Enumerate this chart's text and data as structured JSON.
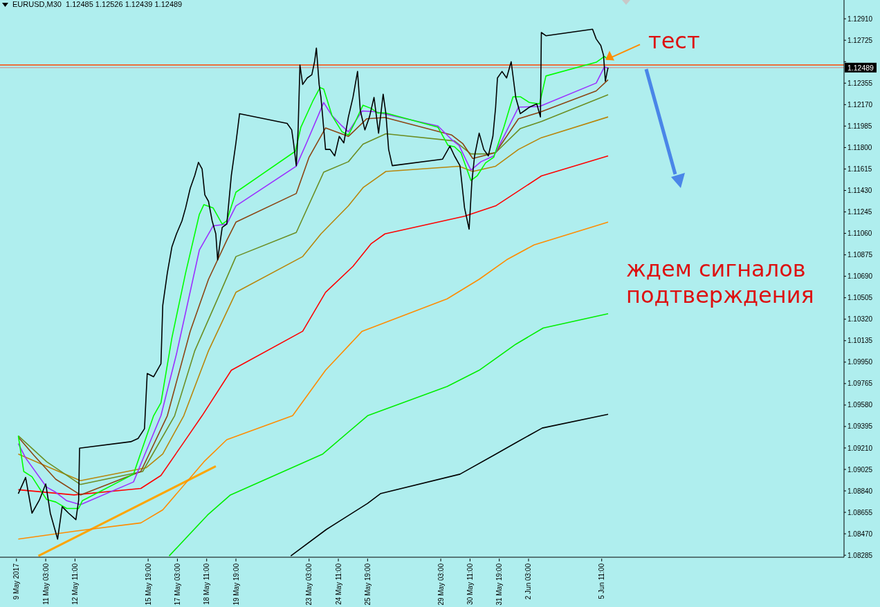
{
  "chart_data": {
    "type": "line",
    "title": "EURUSD,M30  1.12485 1.12526 1.12439 1.12489",
    "annotations": [
      {
        "text": "тест",
        "x": "2017-06-05T15:00",
        "y": 1.12557
      },
      "ждем сигналов подтверждения"
    ],
    "marker": "none",
    "line_style": "solid",
    "xlim": [
      "2017-05-09T01:00",
      "2017-06-16T12:00"
    ],
    "xticks": [
      {
        "value": "2017-05-09T19:00",
        "label": "9 May 2017"
      },
      {
        "value": "2017-05-11T03:00",
        "label": "11 May 03:00"
      },
      {
        "value": "2017-05-12T11:00",
        "label": "12 May 11:00"
      },
      {
        "value": "2017-05-15T19:00",
        "label": "15 May 19:00"
      },
      {
        "value": "2017-05-17T03:00",
        "label": "17 May 03:00"
      },
      {
        "value": "2017-05-18T11:00",
        "label": "18 May 11:00"
      },
      {
        "value": "2017-05-19T19:00",
        "label": "19 May 19:00"
      },
      {
        "value": "2017-05-23T03:00",
        "label": "23 May 03:00"
      },
      {
        "value": "2017-05-24T11:00",
        "label": "24 May 11:00"
      },
      {
        "value": "2017-05-25T19:00",
        "label": "25 May 19:00"
      },
      {
        "value": "2017-05-29T03:00",
        "label": "29 May 03:00"
      },
      {
        "value": "2017-05-30T11:00",
        "label": "30 May 11:00"
      },
      {
        "value": "2017-05-31T19:00",
        "label": "31 May 19:00"
      },
      {
        "value": "2017-06-02T03:00",
        "label": "2 Jun 03:00"
      },
      {
        "value": "2017-06-05T11:00",
        "label": "5 Jun 11:00"
      }
    ],
    "ylim": [
      1.08268,
      1.13072
    ],
    "yticks": [
      {
        "value": 1.08285,
        "label": "1.08285"
      },
      {
        "value": 1.0847,
        "label": "1.08470"
      },
      {
        "value": 1.08655,
        "label": "1.08655"
      },
      {
        "value": 1.0884,
        "label": "1.08840"
      },
      {
        "value": 1.09025,
        "label": "1.09025"
      },
      {
        "value": 1.0921,
        "label": "1.09210"
      },
      {
        "value": 1.09395,
        "label": "1.09395"
      },
      {
        "value": 1.0958,
        "label": "1.09580"
      },
      {
        "value": 1.09765,
        "label": "1.09765"
      },
      {
        "value": 1.0995,
        "label": "1.09950"
      },
      {
        "value": 1.10135,
        "label": "1.10135"
      },
      {
        "value": 1.1032,
        "label": "1.10320"
      },
      {
        "value": 1.10505,
        "label": "1.10505"
      },
      {
        "value": 1.1069,
        "label": "1.10690"
      },
      {
        "value": 1.10875,
        "label": "1.10875"
      },
      {
        "value": 1.1106,
        "label": "1.11060"
      },
      {
        "value": 1.11245,
        "label": "1.11245"
      },
      {
        "value": 1.1143,
        "label": "1.11430"
      },
      {
        "value": 1.11615,
        "label": "1.11615"
      },
      {
        "value": 1.118,
        "label": "1.11800"
      },
      {
        "value": 1.11985,
        "label": "1.11985"
      },
      {
        "value": 1.1217,
        "label": "1.12170"
      },
      {
        "value": 1.12355,
        "label": "1.12355"
      },
      {
        "value": 1.1254,
        "label": null
      },
      {
        "value": 1.12725,
        "label": "1.12725"
      },
      {
        "value": 1.1291,
        "label": "1.12910"
      }
    ],
    "ref_lines": [
      {
        "axis": "y",
        "value": 1.12512,
        "color": "#ff4500"
      },
      {
        "axis": "y",
        "value": 1.12489,
        "label": "1.12489",
        "color": "#c8a8a8"
      }
    ],
    "series": [
      {
        "color": "#ffa500",
        "x": [
          "2017-05-10T19:00",
          "2017-05-18T21:00"
        ],
        "values": [
          1.08279,
          1.09052
        ]
      },
      {
        "color": "#000000",
        "x": [
          "2017-05-22T07:00",
          "2017-05-23T22:00",
          "2017-05-25T19:00",
          "2017-05-26T09:00",
          "2017-05-30T00:00",
          "2017-05-31T14:00",
          "2017-06-01T14:00",
          "2017-06-02T18:00",
          "2017-06-05T18:00"
        ],
        "values": [
          1.08279,
          1.08508,
          1.08732,
          1.08816,
          1.08984,
          1.09152,
          1.09259,
          1.09382,
          1.095
        ]
      },
      {
        "color": "#00ee00",
        "x": [
          "2017-05-16T18:00",
          "2017-05-18T12:00",
          "2017-05-19T13:00",
          "2017-05-23T18:00",
          "2017-05-25T19:00",
          "2017-05-29T10:00",
          "2017-05-30T21:00",
          "2017-06-01T13:00",
          "2017-06-02T19:00",
          "2017-06-05T18:00"
        ],
        "values": [
          1.08279,
          1.08632,
          1.08805,
          1.09158,
          1.09488,
          1.0974,
          1.0988,
          1.10104,
          1.10244,
          1.10368
        ]
      },
      {
        "color": "#ff8c00",
        "x": [
          "2017-05-09T21:00",
          "2017-05-12T10:00",
          "2017-05-15T11:00",
          "2017-05-16T11:00",
          "2017-05-18T08:00",
          "2017-05-19T09:00",
          "2017-05-22T09:00",
          "2017-05-23T21:00",
          "2017-05-25T13:00",
          "2017-05-29T10:00",
          "2017-05-30T21:00",
          "2017-06-01T03:00",
          "2017-06-02T09:00",
          "2017-06-05T18:00"
        ],
        "values": [
          1.08424,
          1.08492,
          1.08564,
          1.08676,
          1.09091,
          1.09281,
          1.09488,
          1.0988,
          1.10216,
          1.10496,
          1.10664,
          1.10832,
          1.10961,
          1.11157
        ]
      },
      {
        "color": "#ff0000",
        "x": [
          "2017-05-09T21:00",
          "2017-05-12T10:00",
          "2017-05-15T11:00",
          "2017-05-16T09:00",
          "2017-05-17T08:00",
          "2017-05-18T06:00",
          "2017-05-19T14:00",
          "2017-05-22T20:00",
          "2017-05-23T21:00",
          "2017-05-25T03:00",
          "2017-05-25T23:00",
          "2017-05-26T14:00",
          "2017-05-30T05:00",
          "2017-05-31T15:00",
          "2017-06-02T17:00",
          "2017-06-05T18:00"
        ],
        "values": [
          1.0885,
          1.08805,
          1.08861,
          1.08973,
          1.09236,
          1.09488,
          1.0988,
          1.10216,
          1.10552,
          1.10776,
          1.10972,
          1.11056,
          1.11208,
          1.11297,
          1.11555,
          1.11728
        ]
      },
      {
        "color": "#b8860b",
        "x": [
          "2017-05-09T21:00",
          "2017-05-11T04:00",
          "2017-05-12T17:00",
          "2017-05-15T17:00",
          "2017-05-16T11:00",
          "2017-05-17T10:00",
          "2017-05-18T13:00",
          "2017-05-19T19:00",
          "2017-05-22T20:00",
          "2017-05-23T16:00",
          "2017-05-24T22:00",
          "2017-05-25T14:00",
          "2017-05-26T15:00",
          "2017-05-29T23:00",
          "2017-05-30T14:00",
          "2017-05-31T15:00",
          "2017-06-01T16:00",
          "2017-06-02T17:00",
          "2017-06-05T18:00"
        ],
        "values": [
          1.09158,
          1.09052,
          1.08928,
          1.0904,
          1.09158,
          1.09488,
          1.10048,
          1.10552,
          1.1086,
          1.11056,
          1.11297,
          1.11454,
          1.11594,
          1.11639,
          1.11594,
          1.11639,
          1.11784,
          1.11885,
          1.12064
        ]
      },
      {
        "color": "#6b8e23",
        "x": [
          "2017-05-09T21:00",
          "2017-05-11T04:00",
          "2017-05-12T17:00",
          "2017-05-15T13:00",
          "2017-05-17T00:00",
          "2017-05-17T22:00",
          "2017-05-18T23:00",
          "2017-05-19T19:00",
          "2017-05-22T13:00",
          "2017-05-23T19:00",
          "2017-05-24T22:00",
          "2017-05-25T14:00",
          "2017-05-26T15:00",
          "2017-05-29T18:00",
          "2017-05-30T12:00",
          "2017-05-31T06:00",
          "2017-05-31T15:00",
          "2017-06-01T18:00",
          "2017-06-02T17:00",
          "2017-06-05T18:00"
        ],
        "values": [
          1.09315,
          1.09091,
          1.08895,
          1.09007,
          1.09488,
          1.10048,
          1.10496,
          1.1086,
          1.11068,
          1.11588,
          1.11678,
          1.11829,
          1.11919,
          1.11857,
          1.11745,
          1.11745,
          1.11756,
          1.11964,
          1.12025,
          1.12255
        ]
      },
      {
        "color": "#8b4513",
        "x": [
          "2017-05-09T21:00",
          "2017-05-10T14:00",
          "2017-05-11T14:00",
          "2017-05-12T17:00",
          "2017-05-15T11:00",
          "2017-05-16T16:00",
          "2017-05-17T17:00",
          "2017-05-18T13:00",
          "2017-05-19T09:00",
          "2017-05-19T19:00",
          "2017-05-22T13:00",
          "2017-05-23T03:00",
          "2017-05-23T21:00",
          "2017-05-24T22:00",
          "2017-05-25T18:00",
          "2017-05-26T14:00",
          "2017-05-29T15:00",
          "2017-05-30T03:00",
          "2017-05-30T14:00",
          "2017-05-31T04:00",
          "2017-05-31T15:00",
          "2017-06-01T16:00",
          "2017-06-02T15:00",
          "2017-06-05T05:00",
          "2017-06-05T18:00"
        ],
        "values": [
          1.09304,
          1.09147,
          1.0894,
          1.08805,
          1.09007,
          1.09488,
          1.10216,
          1.10664,
          1.11,
          1.11157,
          1.11404,
          1.11717,
          1.11969,
          1.11896,
          1.12048,
          1.12059,
          1.11908,
          1.11835,
          1.11706,
          1.11734,
          1.11756,
          1.12048,
          1.12104,
          1.12288,
          1.12384
        ]
      },
      {
        "color": "#9b30ff",
        "x": [
          "2017-05-09T21:00",
          "2017-05-10T05:00",
          "2017-05-11T04:00",
          "2017-05-11T14:00",
          "2017-05-12T02:00",
          "2017-05-12T17:00",
          "2017-05-15T03:00",
          "2017-05-15T15:00",
          "2017-05-16T09:00",
          "2017-05-17T02:00",
          "2017-05-18T03:00",
          "2017-05-18T18:00",
          "2017-05-19T09:00",
          "2017-05-19T19:00",
          "2017-05-22T13:00",
          "2017-05-23T00:00",
          "2017-05-23T19:00",
          "2017-05-24T04:00",
          "2017-05-24T15:00",
          "2017-05-24T22:00",
          "2017-05-25T13:00",
          "2017-05-26T03:00",
          "2017-05-26T15:00",
          "2017-05-29T00:00",
          "2017-05-29T15:00",
          "2017-05-29T23:00",
          "2017-05-30T12:00",
          "2017-05-30T23:00",
          "2017-05-31T13:00",
          "2017-06-01T00:00",
          "2017-06-01T16:00",
          "2017-06-02T15:00",
          "2017-06-05T05:00",
          "2017-06-05T14:00",
          "2017-06-05T18:00"
        ],
        "values": [
          1.09248,
          1.09124,
          1.08872,
          1.08828,
          1.08755,
          1.08721,
          1.08917,
          1.09147,
          1.09488,
          1.1002,
          1.10916,
          1.11124,
          1.1114,
          1.11297,
          1.11639,
          1.11835,
          1.12188,
          1.12076,
          1.11986,
          1.11936,
          1.12115,
          1.12109,
          1.12087,
          1.11986,
          1.11868,
          1.11818,
          1.11605,
          1.11678,
          1.11728,
          1.11896,
          1.12148,
          1.12154,
          1.12356,
          1.12496,
          1.12484
        ]
      },
      {
        "color": "#00ff00",
        "x": [
          "2017-05-09T21:00",
          "2017-05-10T03:00",
          "2017-05-10T12:00",
          "2017-05-11T04:00",
          "2017-05-11T14:00",
          "2017-05-12T02:00",
          "2017-05-12T15:00",
          "2017-05-12T19:00",
          "2017-05-15T03:00",
          "2017-05-15T13:00",
          "2017-05-16T01:00",
          "2017-05-16T09:00",
          "2017-05-16T21:00",
          "2017-05-17T12:00",
          "2017-05-18T03:00",
          "2017-05-18T08:00",
          "2017-05-18T18:00",
          "2017-05-19T04:00",
          "2017-05-19T09:00",
          "2017-05-19T19:00",
          "2017-05-22T12:00",
          "2017-05-22T18:00",
          "2017-05-23T07:00",
          "2017-05-23T15:00",
          "2017-05-23T19:00",
          "2017-05-24T04:00",
          "2017-05-24T15:00",
          "2017-05-24T22:00",
          "2017-05-25T05:00",
          "2017-05-25T14:00",
          "2017-05-25T23:00",
          "2017-05-26T06:00",
          "2017-05-26T15:00",
          "2017-05-29T00:00",
          "2017-05-29T11:00",
          "2017-05-29T18:00",
          "2017-05-30T01:00",
          "2017-05-30T12:00",
          "2017-05-30T19:00",
          "2017-05-31T04:00",
          "2017-05-31T13:00",
          "2017-06-01T00:00",
          "2017-06-01T10:00",
          "2017-06-01T18:00",
          "2017-06-02T04:00",
          "2017-06-02T15:00",
          "2017-06-02T22:00",
          "2017-06-05T05:00",
          "2017-06-05T14:00",
          "2017-06-05T18:00"
        ],
        "values": [
          1.09315,
          1.09007,
          1.08962,
          1.08766,
          1.08744,
          1.08688,
          1.08688,
          1.08755,
          1.08984,
          1.09214,
          1.09488,
          1.096,
          1.1016,
          1.1072,
          1.11224,
          1.11308,
          1.1128,
          1.1114,
          1.11168,
          1.11415,
          1.11768,
          1.11975,
          1.12199,
          1.12317,
          1.12305,
          1.12076,
          1.11936,
          1.11908,
          1.12014,
          1.12165,
          1.12137,
          1.12098,
          1.12098,
          1.11975,
          1.11818,
          1.11807,
          1.11756,
          1.11516,
          1.11558,
          1.11668,
          1.11717,
          1.11975,
          1.12238,
          1.12238,
          1.12188,
          1.12176,
          1.12417,
          1.12535,
          1.12585,
          1.12557
        ]
      },
      {
        "color": "#000000",
        "x": [
          "2017-05-09T21:00",
          "2017-05-10T05:00",
          "2017-05-10T12:00",
          "2017-05-10T20:00",
          "2017-05-11T03:00",
          "2017-05-11T08:00",
          "2017-05-11T16:00",
          "2017-05-11T21:00",
          "2017-05-12T04:00",
          "2017-05-12T12:00",
          "2017-05-12T15:00",
          "2017-05-12T16:00",
          "2017-05-15T00:00",
          "2017-05-15T08:00",
          "2017-05-15T15:00",
          "2017-05-15T18:00",
          "2017-05-16T01:00",
          "2017-05-16T09:00",
          "2017-05-16T11:00",
          "2017-05-16T16:00",
          "2017-05-16T21:00",
          "2017-05-17T02:00",
          "2017-05-17T08:00",
          "2017-05-17T12:00",
          "2017-05-17T17:00",
          "2017-05-17T22:00",
          "2017-05-18T02:00",
          "2017-05-18T06:00",
          "2017-05-18T09:00",
          "2017-05-18T13:00",
          "2017-05-18T17:00",
          "2017-05-18T21:00",
          "2017-05-18T23:00",
          "2017-05-19T04:00",
          "2017-05-19T09:00",
          "2017-05-19T14:00",
          "2017-05-19T19:00",
          "2017-05-19T23:00",
          "2017-05-22T03:00",
          "2017-05-22T08:00",
          "2017-05-22T10:00",
          "2017-05-22T13:00",
          "2017-05-22T15:00",
          "2017-05-22T17:00",
          "2017-05-22T20:00",
          "2017-05-23T01:00",
          "2017-05-23T06:00",
          "2017-05-23T09:00",
          "2017-05-23T11:00",
          "2017-05-23T14:00",
          "2017-05-23T16:00",
          "2017-05-23T21:00",
          "2017-05-24T02:00",
          "2017-05-24T07:00",
          "2017-05-24T12:00",
          "2017-05-24T17:00",
          "2017-05-24T22:00",
          "2017-05-25T03:00",
          "2017-05-25T08:00",
          "2017-05-25T11:00",
          "2017-05-25T16:00",
          "2017-05-25T21:00",
          "2017-05-26T02:00",
          "2017-05-26T07:00",
          "2017-05-26T12:00",
          "2017-05-26T15:00",
          "2017-05-26T18:00",
          "2017-05-26T22:00",
          "2017-05-29T05:00",
          "2017-05-29T13:00",
          "2017-05-29T18:00",
          "2017-05-30T00:00",
          "2017-05-30T05:00",
          "2017-05-30T10:00",
          "2017-05-30T13:00",
          "2017-05-30T16:00",
          "2017-05-30T21:00",
          "2017-05-31T02:00",
          "2017-05-31T07:00",
          "2017-05-31T12:00",
          "2017-05-31T15:00",
          "2017-05-31T17:00",
          "2017-05-31T22:00",
          "2017-06-01T03:00",
          "2017-06-01T08:00",
          "2017-06-01T13:00",
          "2017-06-01T18:00",
          "2017-06-01T23:00",
          "2017-06-02T04:00",
          "2017-06-02T12:00",
          "2017-06-02T16:00",
          "2017-06-02T17:00",
          "2017-06-02T22:00",
          "2017-06-05T01:00",
          "2017-06-05T05:00",
          "2017-06-05T10:00",
          "2017-06-05T13:00",
          "2017-06-05T15:00",
          "2017-06-05T17:00",
          "2017-06-05T18:00"
        ],
        "values": [
          1.08816,
          1.08956,
          1.08648,
          1.0876,
          1.089,
          1.08648,
          1.08424,
          1.08704,
          1.08648,
          1.08592,
          1.0876,
          1.09208,
          1.09264,
          1.09292,
          1.09376,
          1.09852,
          1.09824,
          1.09936,
          1.1044,
          1.1072,
          1.10944,
          1.11056,
          1.11168,
          1.1128,
          1.11448,
          1.1156,
          1.11672,
          1.11616,
          1.11392,
          1.11336,
          1.11168,
          1.11056,
          1.10832,
          1.11112,
          1.1114,
          1.1156,
          1.1184,
          1.12092,
          1.12008,
          1.11952,
          1.1184,
          1.11644,
          1.11952,
          1.12512,
          1.12344,
          1.124,
          1.12428,
          1.1254,
          1.12658,
          1.12344,
          1.12232,
          1.11784,
          1.11784,
          1.11728,
          1.11896,
          1.1184,
          1.12064,
          1.12232,
          1.12456,
          1.1212,
          1.11952,
          1.12064,
          1.12232,
          1.11924,
          1.1226,
          1.12092,
          1.11784,
          1.11644,
          1.117,
          1.11812,
          1.11728,
          1.11644,
          1.1128,
          1.11096,
          1.11504,
          1.11728,
          1.11924,
          1.11784,
          1.11728,
          1.11896,
          1.12148,
          1.124,
          1.12456,
          1.124,
          1.1254,
          1.12232,
          1.12092,
          1.1212,
          1.12148,
          1.12176,
          1.12064,
          1.12792,
          1.12764,
          1.1282,
          1.12736,
          1.1268,
          1.12596,
          1.12372,
          1.12456,
          1.12489
        ]
      }
    ]
  }
}
